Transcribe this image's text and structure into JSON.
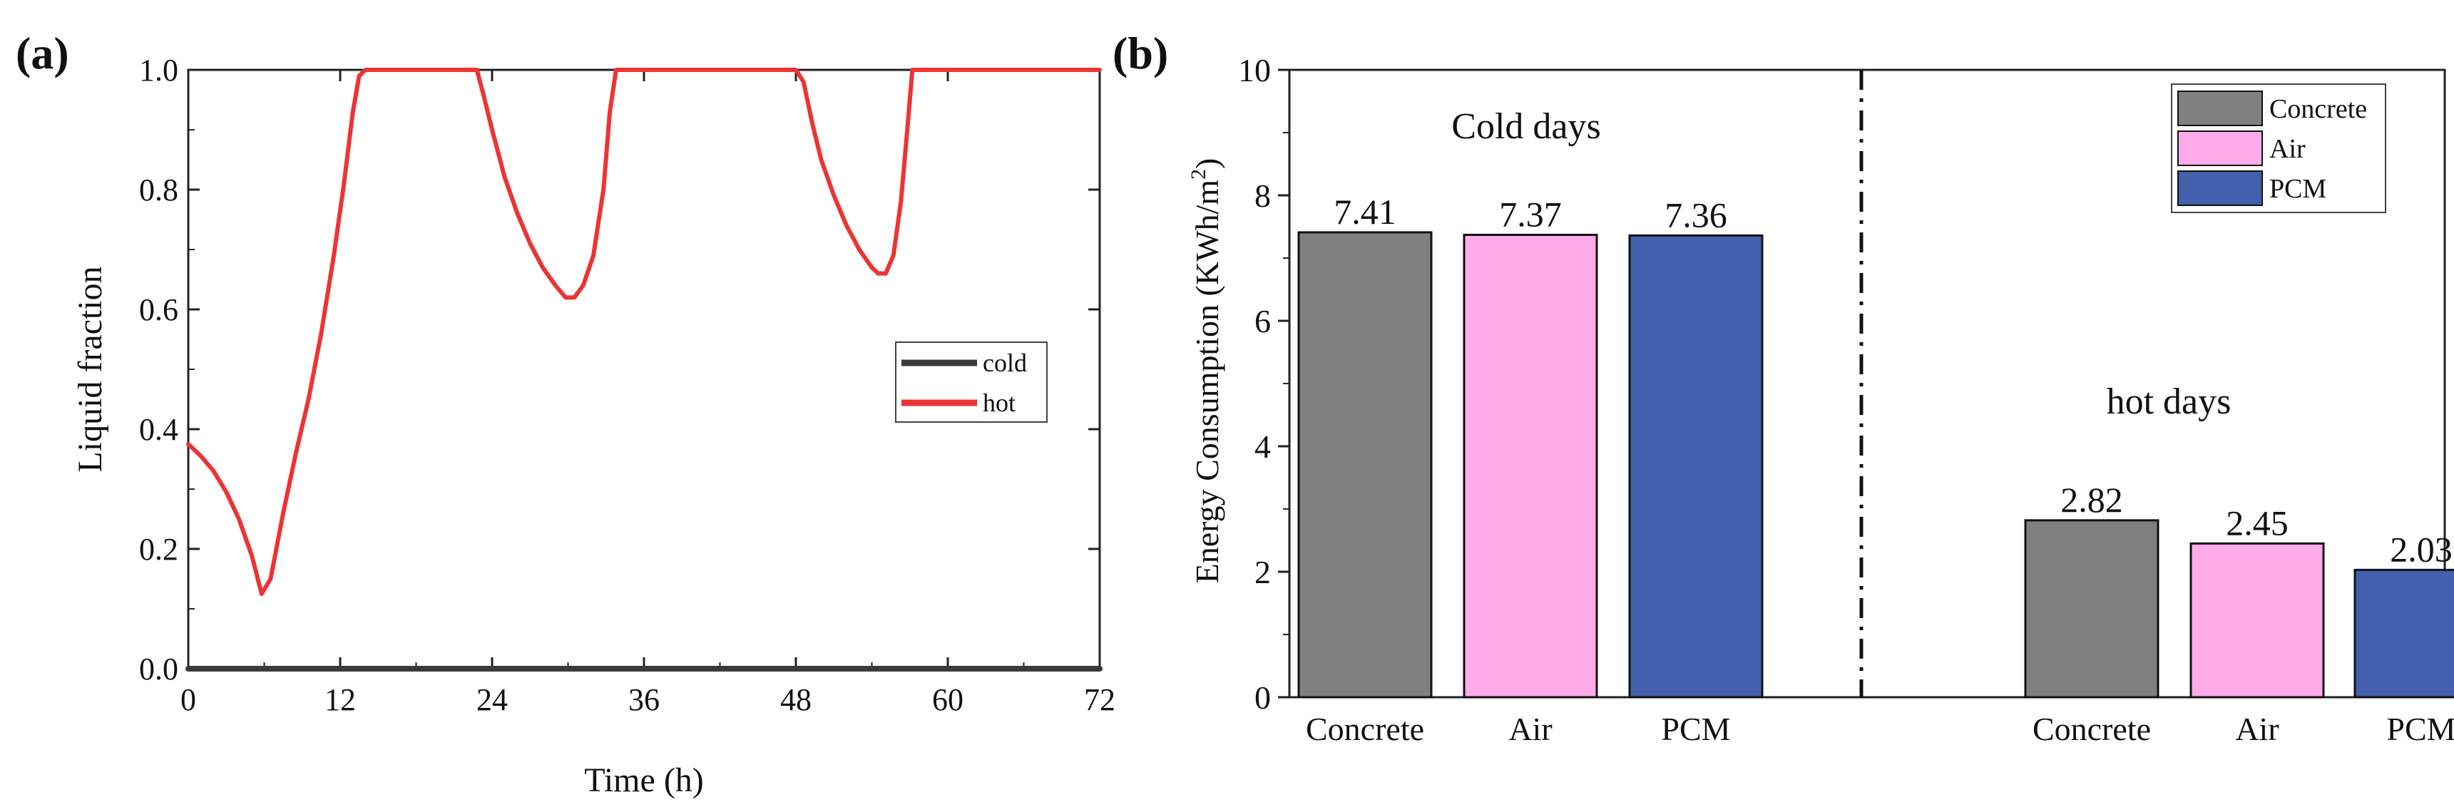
{
  "panel_a_label": "(a)",
  "panel_b_label": "(b)",
  "chart_data": [
    {
      "type": "line",
      "title": "",
      "xlabel": "Time (h)",
      "ylabel": "Liquid fraction",
      "xlim": [
        0,
        72
      ],
      "ylim": [
        0,
        1.0
      ],
      "xticks": [
        0,
        12,
        24,
        36,
        48,
        60,
        72
      ],
      "yticks": [
        "0.0",
        "0.2",
        "0.4",
        "0.6",
        "0.8",
        "1.0"
      ],
      "legend_position": "center-right",
      "series": [
        {
          "name": "cold",
          "color": "#3a3a3a",
          "x": [
            0,
            72
          ],
          "y": [
            0.0,
            0.0
          ]
        },
        {
          "name": "hot",
          "color": "#ee3333",
          "x": [
            0,
            1,
            2,
            3,
            4,
            5,
            5.8,
            6.5,
            7.5,
            8.5,
            9.5,
            10.5,
            11.5,
            12.3,
            13,
            13.5,
            14,
            16,
            18,
            20,
            22,
            22.8,
            23.3,
            24,
            25,
            26,
            27,
            28,
            29,
            29.8,
            30.5,
            31.2,
            32,
            32.8,
            33.3,
            33.8,
            36,
            40,
            44,
            48,
            48.6,
            49.3,
            50,
            51,
            52,
            53,
            54,
            54.5,
            55.1,
            55.7,
            56.3,
            56.8,
            57.2,
            60,
            64,
            68,
            72
          ],
          "y": [
            0.375,
            0.355,
            0.33,
            0.295,
            0.25,
            0.19,
            0.125,
            0.15,
            0.26,
            0.36,
            0.45,
            0.56,
            0.69,
            0.81,
            0.93,
            0.99,
            1.0,
            1.0,
            1.0,
            1.0,
            1.0,
            1.0,
            0.96,
            0.9,
            0.82,
            0.76,
            0.71,
            0.67,
            0.64,
            0.62,
            0.62,
            0.64,
            0.69,
            0.8,
            0.93,
            1.0,
            1.0,
            1.0,
            1.0,
            1.0,
            0.98,
            0.91,
            0.85,
            0.79,
            0.74,
            0.7,
            0.67,
            0.66,
            0.66,
            0.69,
            0.78,
            0.9,
            1.0,
            1.0,
            1.0,
            1.0,
            1.0
          ]
        }
      ]
    },
    {
      "type": "bar",
      "title": "",
      "xlabel": "",
      "ylabel": "Energy Consumption (KWh/m",
      "ylabel_sup": "2",
      "ylabel_end": ")",
      "ylim": [
        0,
        10
      ],
      "yticks": [
        "0",
        "2",
        "4",
        "6",
        "8",
        "10"
      ],
      "legend_position": "top-right",
      "groups": [
        {
          "name": "Cold days",
          "categories": [
            "Concrete",
            "Air",
            "PCM"
          ],
          "values": [
            7.41,
            7.37,
            7.36
          ],
          "value_labels": [
            "7.41",
            "7.37",
            "7.36"
          ]
        },
        {
          "name": "hot days",
          "categories": [
            "Concrete",
            "Air",
            "PCM"
          ],
          "values": [
            2.82,
            2.45,
            2.03
          ],
          "value_labels": [
            "2.82",
            "2.45",
            "2.03"
          ]
        }
      ],
      "legend": [
        {
          "name": "Concrete",
          "color": "#808080"
        },
        {
          "name": "Air",
          "color": "#ffaae9"
        },
        {
          "name": "PCM",
          "color": "#4360ac"
        }
      ]
    }
  ]
}
